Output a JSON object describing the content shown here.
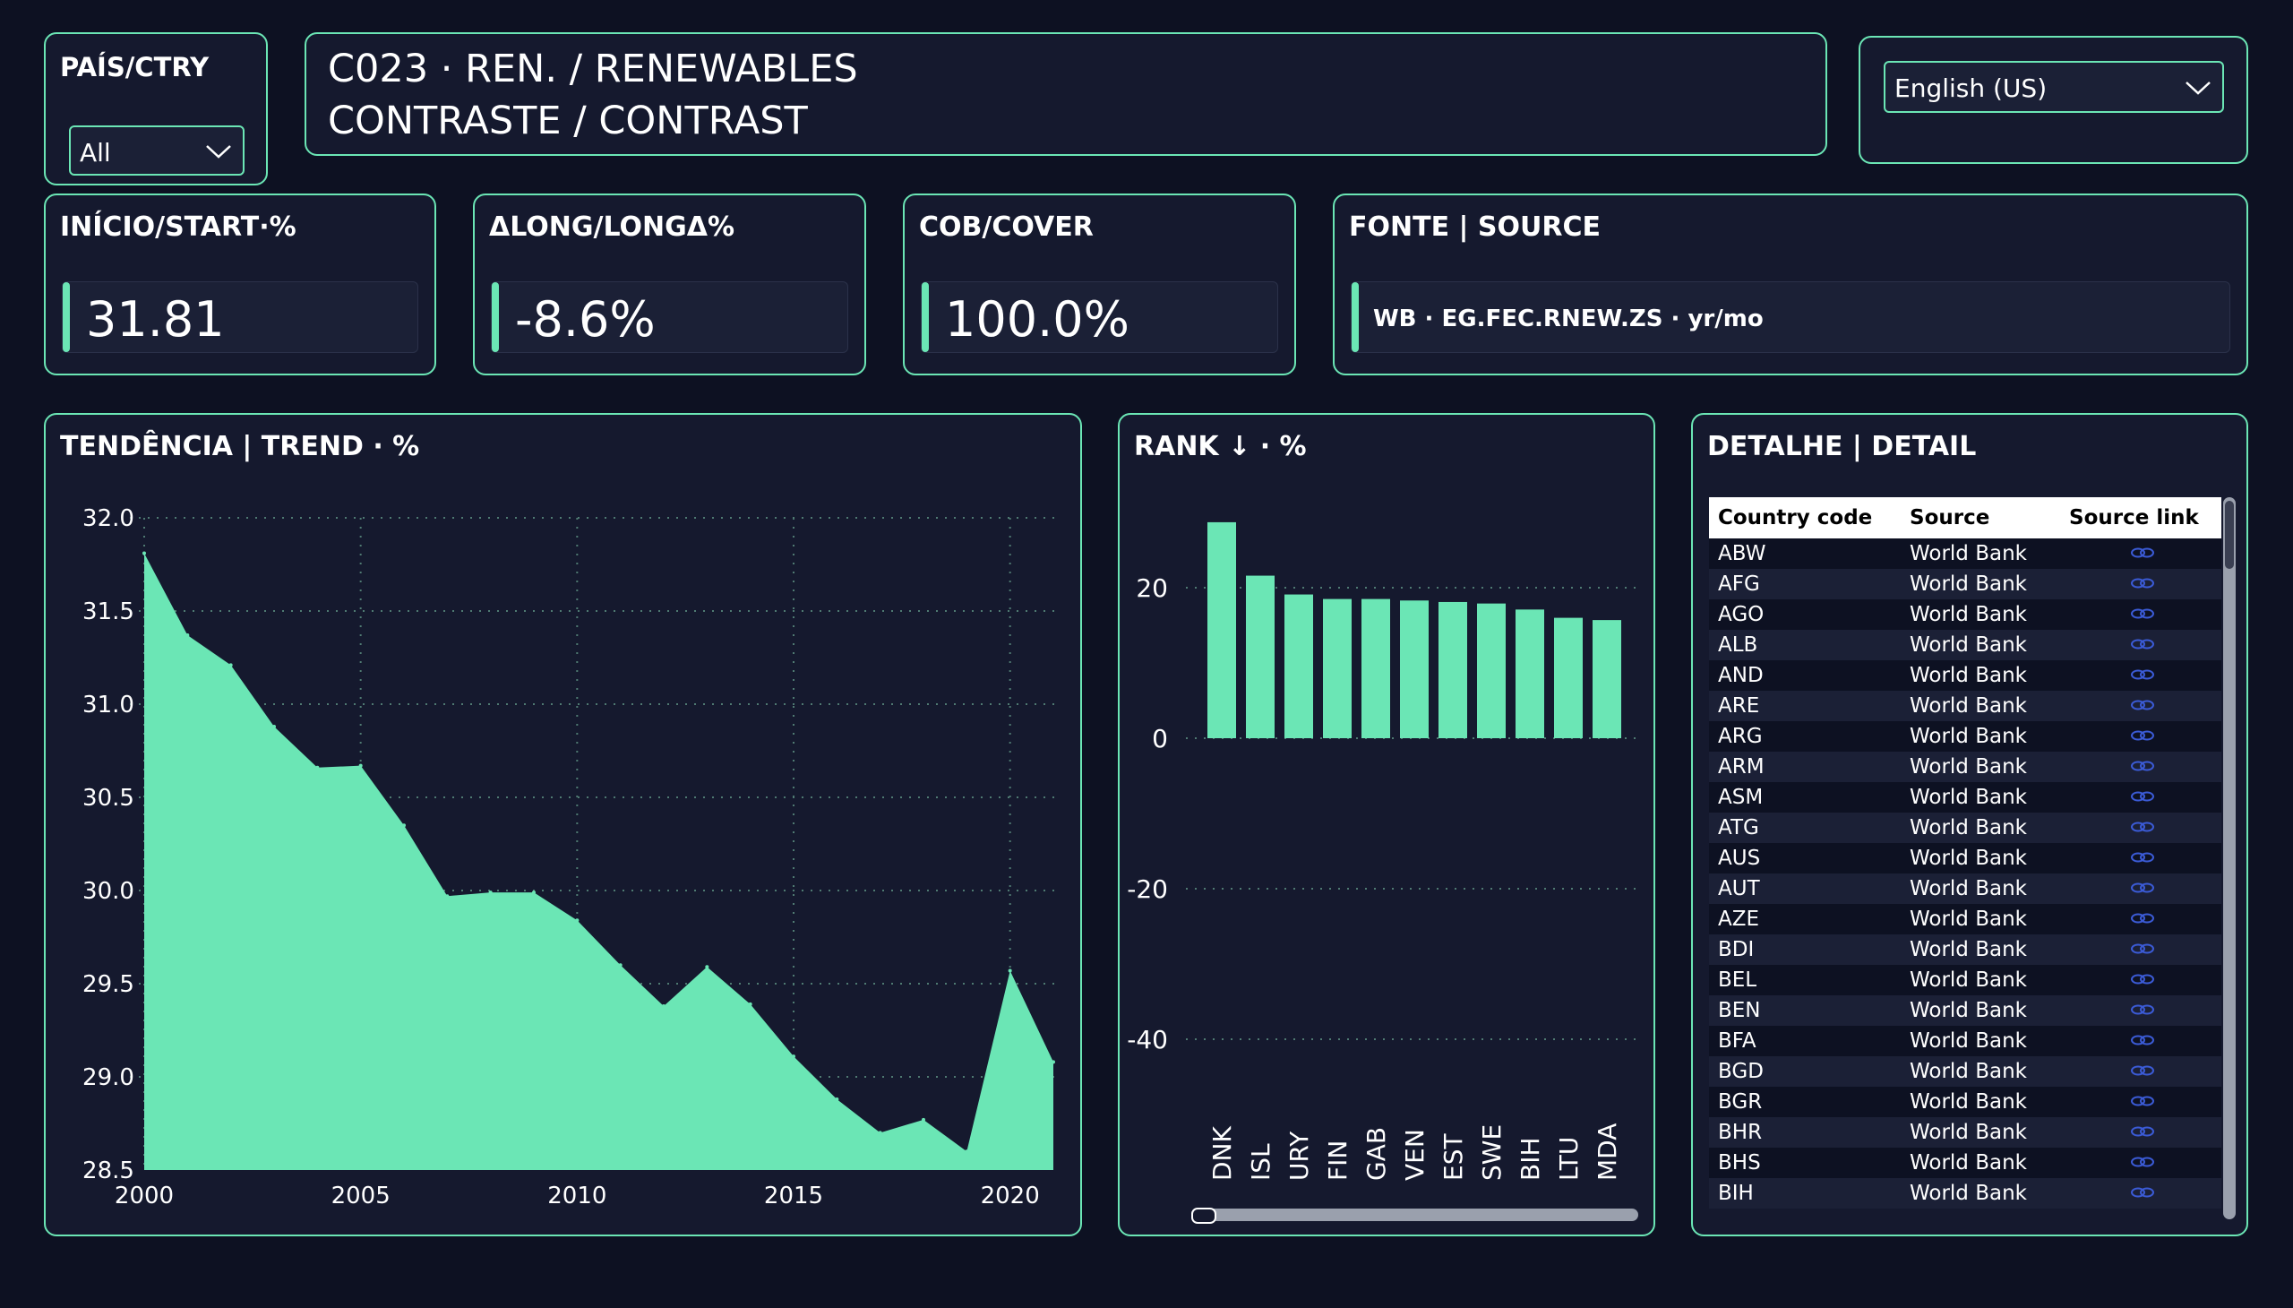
{
  "filter": {
    "label": "PAÍS/CTRY",
    "value": "All"
  },
  "header": {
    "line1": "C023 · REN. / RENEWABLES",
    "line2": "CONTRASTE / CONTRAST"
  },
  "language": {
    "value": "English (US)"
  },
  "kpis": [
    {
      "label": "INÍCIO/START·%",
      "value": "31.81"
    },
    {
      "label": "ΔLONG/LONGΔ%",
      "value": "-8.6%"
    },
    {
      "label": "COB/COVER",
      "value": "100.0%"
    }
  ],
  "source": {
    "label": "FONTE | SOURCE",
    "value": "WB · EG.FEC.RNEW.ZS · yr/mo"
  },
  "colors": {
    "accent": "#6be6b5",
    "background": "#0d1122",
    "card": "#15192e",
    "grid": "#4f7a72",
    "link": "#3b5bd6"
  },
  "chart_data": [
    {
      "type": "area",
      "title": "TENDÊNCIA | TREND · %",
      "xlabel": "",
      "ylabel": "",
      "x": [
        2000,
        2001,
        2002,
        2003,
        2004,
        2005,
        2006,
        2007,
        2008,
        2009,
        2010,
        2011,
        2012,
        2013,
        2014,
        2015,
        2016,
        2017,
        2018,
        2019,
        2020,
        2021
      ],
      "series": [
        {
          "values": [
            31.81,
            31.37,
            31.21,
            30.88,
            30.66,
            30.67,
            30.35,
            29.97,
            29.99,
            29.99,
            29.84,
            29.6,
            29.38,
            29.59,
            29.39,
            29.11,
            28.88,
            28.7,
            28.77,
            28.6,
            29.57,
            29.08
          ]
        }
      ],
      "ylim": [
        28.5,
        32.0
      ],
      "yticks": [
        "32.0",
        "31.5",
        "31.0",
        "30.5",
        "30.0",
        "29.5",
        "29.0",
        "28.5"
      ],
      "xticks": [
        "2000",
        "2005",
        "2010",
        "2015",
        "2020"
      ],
      "grid": true
    },
    {
      "type": "bar",
      "title": "RANK ↓ · %",
      "categories": [
        "DNK",
        "ISL",
        "URY",
        "FIN",
        "GAB",
        "VEN",
        "EST",
        "SWE",
        "BIH",
        "LTU",
        "MDA"
      ],
      "values": [
        28.7,
        21.6,
        19.1,
        18.5,
        18.5,
        18.3,
        18.1,
        17.9,
        17.1,
        16.0,
        15.7
      ],
      "ylim": [
        -50,
        30
      ],
      "yticks": [
        "20",
        "0",
        "-20",
        "-40"
      ],
      "grid": true
    }
  ],
  "table": {
    "title": "DETALHE | DETAIL",
    "columns": [
      "Country code",
      "Source",
      "Source link"
    ],
    "rows": [
      [
        "ABW",
        "World Bank"
      ],
      [
        "AFG",
        "World Bank"
      ],
      [
        "AGO",
        "World Bank"
      ],
      [
        "ALB",
        "World Bank"
      ],
      [
        "AND",
        "World Bank"
      ],
      [
        "ARE",
        "World Bank"
      ],
      [
        "ARG",
        "World Bank"
      ],
      [
        "ARM",
        "World Bank"
      ],
      [
        "ASM",
        "World Bank"
      ],
      [
        "ATG",
        "World Bank"
      ],
      [
        "AUS",
        "World Bank"
      ],
      [
        "AUT",
        "World Bank"
      ],
      [
        "AZE",
        "World Bank"
      ],
      [
        "BDI",
        "World Bank"
      ],
      [
        "BEL",
        "World Bank"
      ],
      [
        "BEN",
        "World Bank"
      ],
      [
        "BFA",
        "World Bank"
      ],
      [
        "BGD",
        "World Bank"
      ],
      [
        "BGR",
        "World Bank"
      ],
      [
        "BHR",
        "World Bank"
      ],
      [
        "BHS",
        "World Bank"
      ],
      [
        "BIH",
        "World Bank"
      ]
    ]
  }
}
